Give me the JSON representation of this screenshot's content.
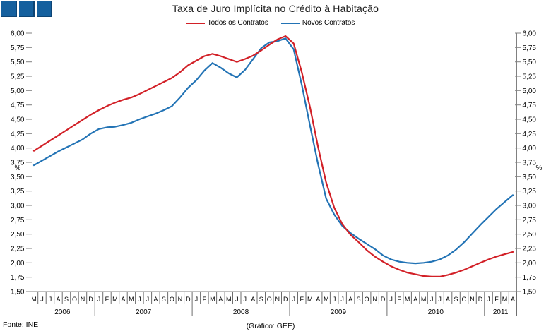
{
  "logo": {
    "square_color": "#15609e",
    "square_count": 3
  },
  "title": "Taxa de Juro Implícita no Crédito à Habitação",
  "footer": {
    "source": "Fonte: INE",
    "credit": "(Gráfico: GEE)"
  },
  "chart_data": {
    "type": "line",
    "title": "Taxa de Juro Implícita no Crédito à Habitação",
    "xlabel": "",
    "ylabel": "%",
    "ylim": [
      1.5,
      6.0
    ],
    "ytick_step": 0.25,
    "ytick_labels": [
      "6,00",
      "5,75",
      "5,50",
      "5,25",
      "5,00",
      "4,75",
      "4,50",
      "4,25",
      "4,00",
      "3,75",
      "3,50",
      "3,25",
      "3,00",
      "2,75",
      "2,50",
      "2,25",
      "2,00",
      "1,75",
      "1,50"
    ],
    "grid": false,
    "legend_position": "top-center",
    "dual_y_axis": true,
    "x_start": "Mai 2006",
    "x_end": "Abr 2011",
    "categories": [
      "M",
      "J",
      "J",
      "A",
      "S",
      "O",
      "N",
      "D",
      "J",
      "F",
      "M",
      "A",
      "M",
      "J",
      "J",
      "A",
      "S",
      "O",
      "N",
      "D",
      "J",
      "F",
      "M",
      "A",
      "M",
      "J",
      "J",
      "A",
      "S",
      "O",
      "N",
      "D",
      "J",
      "F",
      "M",
      "A",
      "M",
      "J",
      "J",
      "A",
      "S",
      "O",
      "N",
      "D",
      "J",
      "F",
      "M",
      "A",
      "M",
      "J",
      "J",
      "A",
      "S",
      "O",
      "N",
      "D",
      "J",
      "F",
      "M",
      "A"
    ],
    "year_groups": [
      {
        "label": "2006",
        "months": 8
      },
      {
        "label": "2007",
        "months": 12
      },
      {
        "label": "2008",
        "months": 12
      },
      {
        "label": "2009",
        "months": 12
      },
      {
        "label": "2010",
        "months": 12
      },
      {
        "label": "2011",
        "months": 4
      }
    ],
    "series": [
      {
        "name": "Todos os Contratos",
        "color": "#d22027",
        "values": [
          3.95,
          4.04,
          4.13,
          4.22,
          4.31,
          4.4,
          4.49,
          4.58,
          4.66,
          4.73,
          4.79,
          4.84,
          4.88,
          4.94,
          5.01,
          5.08,
          5.15,
          5.22,
          5.32,
          5.44,
          5.52,
          5.6,
          5.64,
          5.6,
          5.55,
          5.5,
          5.55,
          5.61,
          5.7,
          5.8,
          5.89,
          5.95,
          5.82,
          5.32,
          4.72,
          4.02,
          3.4,
          2.96,
          2.67,
          2.49,
          2.36,
          2.22,
          2.11,
          2.02,
          1.94,
          1.88,
          1.83,
          1.8,
          1.77,
          1.76,
          1.76,
          1.79,
          1.83,
          1.88,
          1.94,
          2.0,
          2.06,
          2.11,
          2.15,
          2.19
        ]
      },
      {
        "name": "Novos Contratos",
        "color": "#2273b5",
        "values": [
          3.7,
          3.78,
          3.86,
          3.94,
          4.01,
          4.08,
          4.15,
          4.25,
          4.33,
          4.36,
          4.37,
          4.4,
          4.44,
          4.5,
          4.55,
          4.6,
          4.66,
          4.73,
          4.88,
          5.05,
          5.18,
          5.35,
          5.48,
          5.4,
          5.3,
          5.23,
          5.36,
          5.55,
          5.74,
          5.84,
          5.86,
          5.91,
          5.72,
          5.1,
          4.4,
          3.72,
          3.12,
          2.84,
          2.64,
          2.52,
          2.42,
          2.33,
          2.24,
          2.13,
          2.06,
          2.02,
          2.0,
          1.99,
          2.0,
          2.02,
          2.06,
          2.13,
          2.23,
          2.36,
          2.51,
          2.66,
          2.8,
          2.94,
          3.06,
          3.18
        ]
      }
    ]
  }
}
